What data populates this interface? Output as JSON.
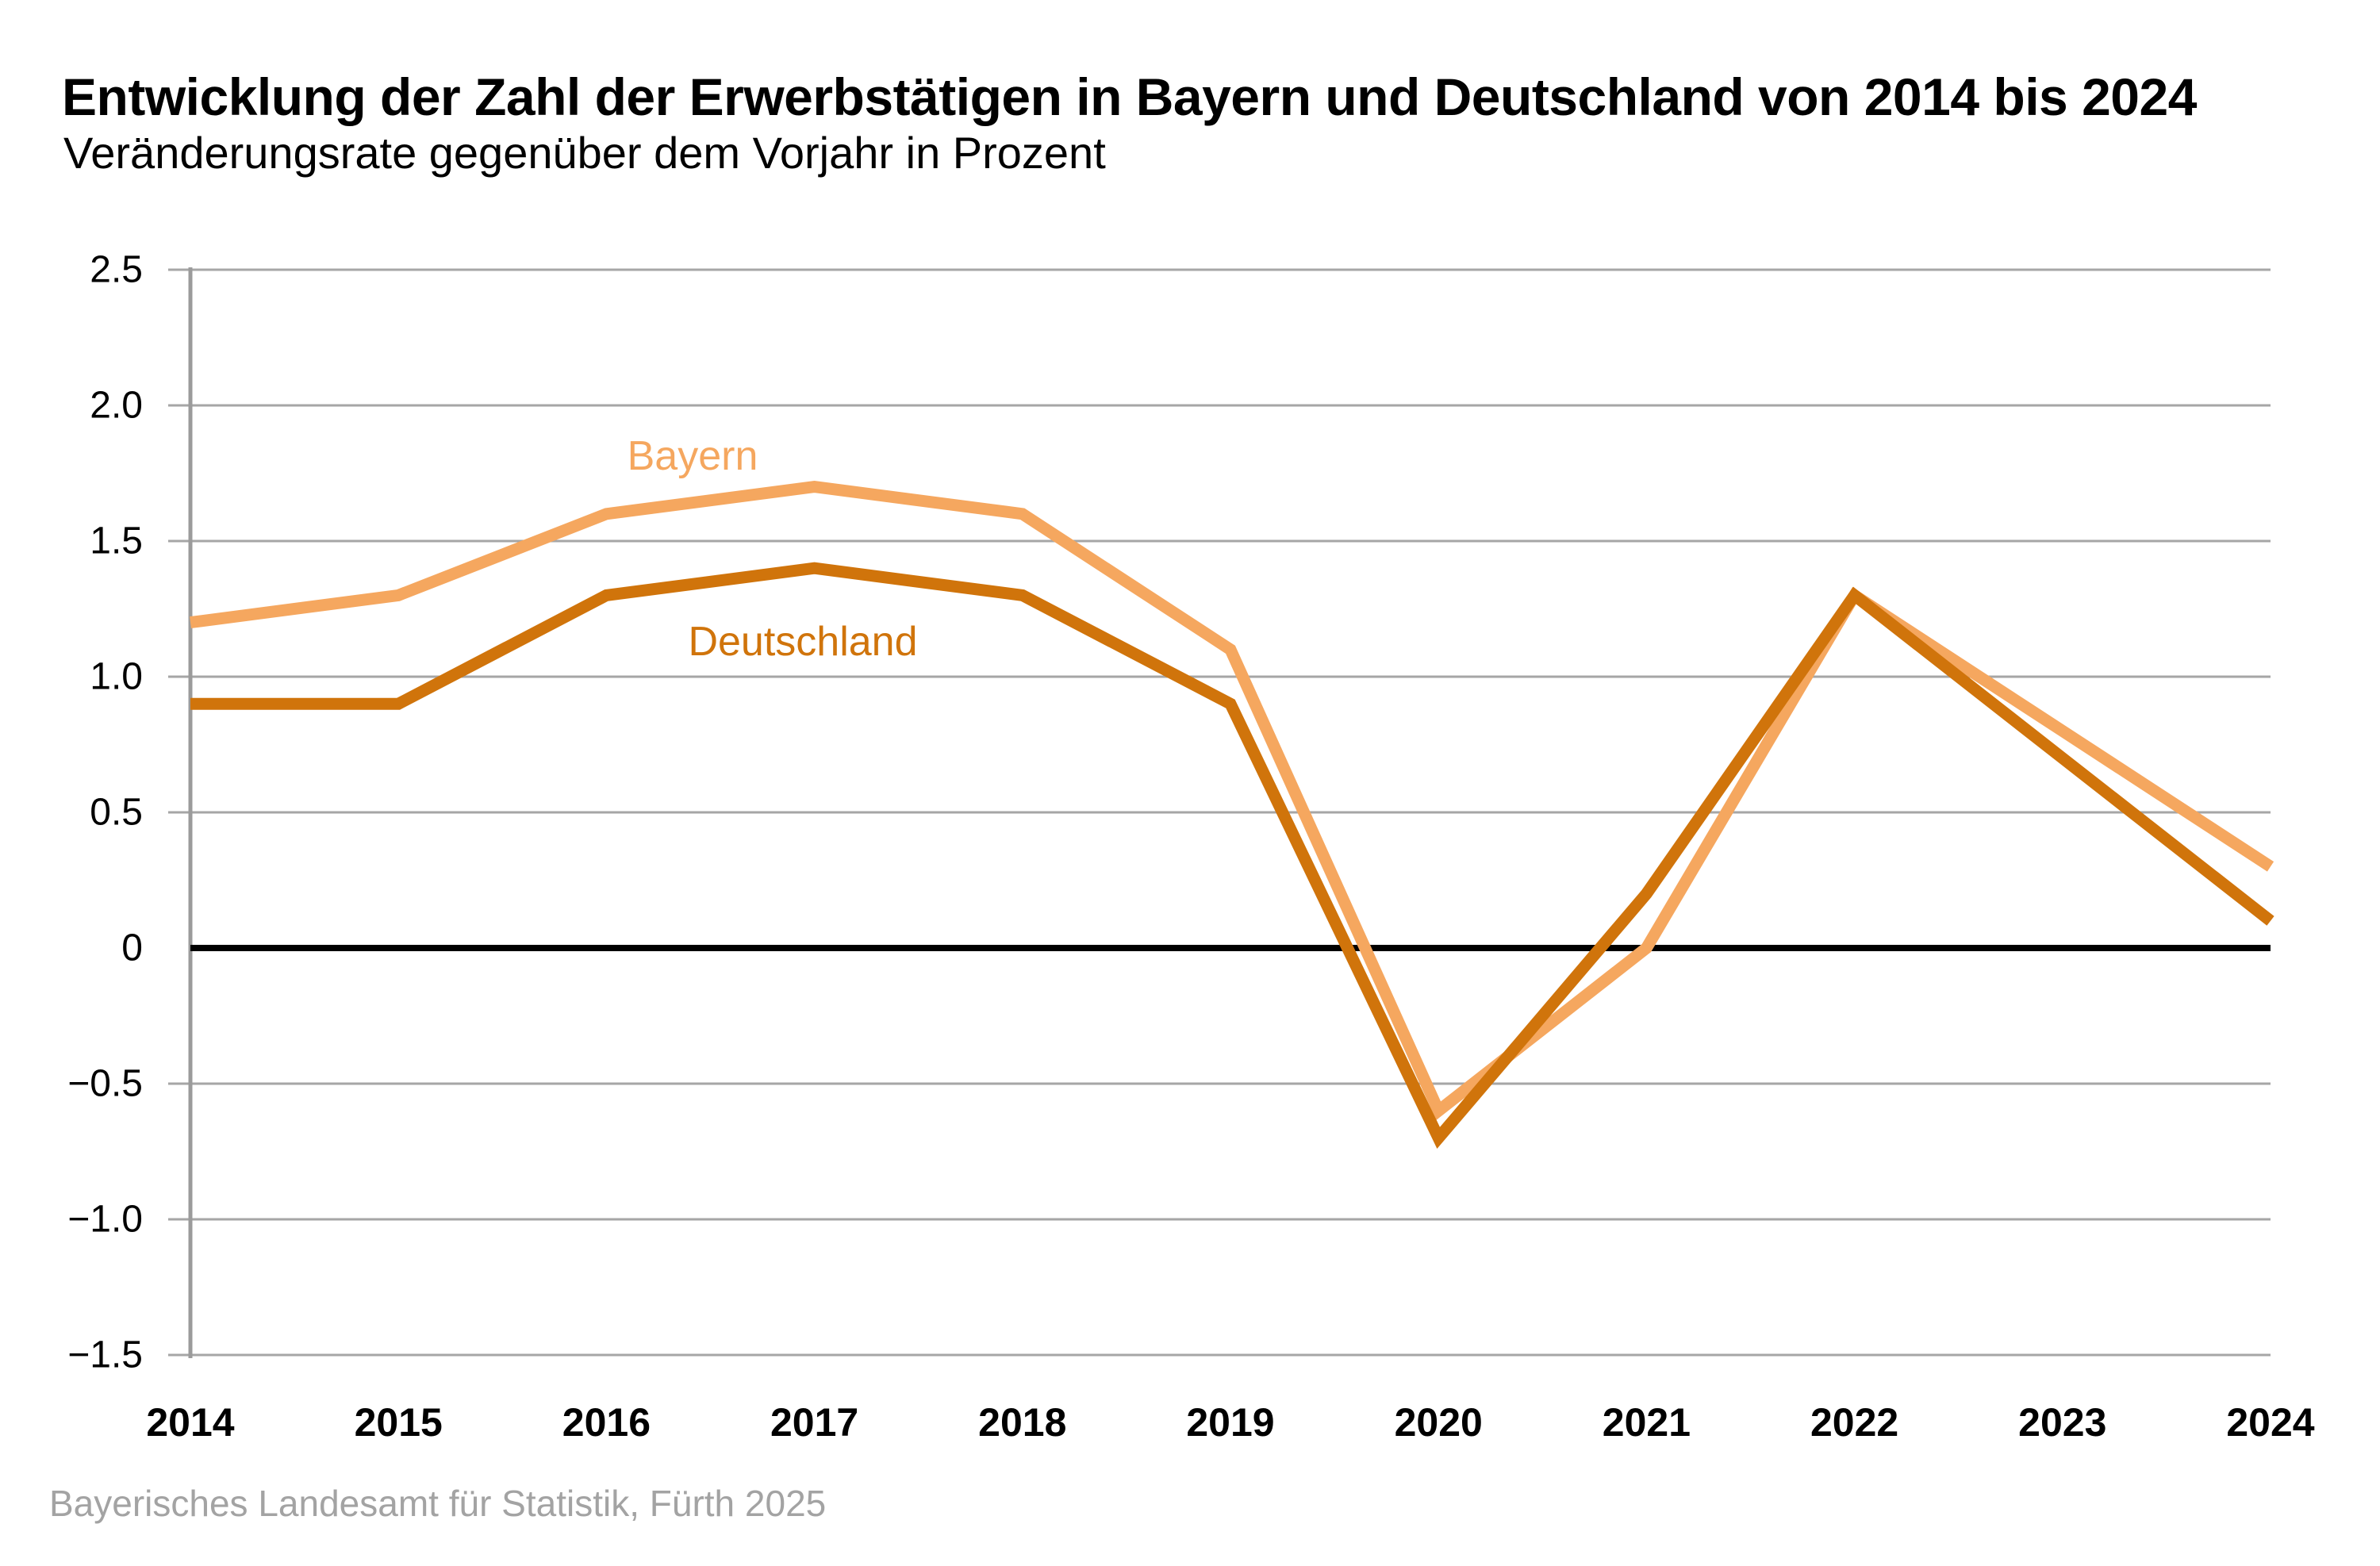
{
  "header": {
    "title": "Entwicklung der Zahl der Erwerbstätigen in Bayern und Deutschland von 2014 bis 2024",
    "subtitle": "Veränderungsrate gegenüber dem Vorjahr in Prozent"
  },
  "footer": {
    "source": "Bayerisches Landesamt für Statistik, Fürth 2025"
  },
  "colors": {
    "bayern": "#F5A75F",
    "deutschland": "#D0740B",
    "gridline": "#a6a6a6",
    "y_axis": "#9b9b9b",
    "zero_line": "#000000",
    "axis_text": "#000000",
    "footer_text": "#a3a3a3"
  },
  "chart_data": {
    "type": "line",
    "title": "Entwicklung der Zahl der Erwerbstätigen in Bayern und Deutschland von 2014 bis 2024",
    "subtitle": "Veränderungsrate gegenüber dem Vorjahr in Prozent",
    "categories": [
      "2014",
      "2015",
      "2016",
      "2017",
      "2018",
      "2019",
      "2020",
      "2021",
      "2022",
      "2023",
      "2024"
    ],
    "series": [
      {
        "name": "Bayern",
        "color": "#F5A75F",
        "values": [
          1.2,
          1.3,
          1.6,
          1.7,
          1.6,
          1.1,
          -0.6,
          0.0,
          1.3,
          0.8,
          0.3
        ]
      },
      {
        "name": "Deutschland",
        "color": "#D0740B",
        "values": [
          0.9,
          0.9,
          1.3,
          1.4,
          1.3,
          0.9,
          -0.7,
          0.2,
          1.3,
          0.7,
          0.1
        ]
      }
    ],
    "xlabel": "",
    "ylabel": "",
    "ylim": [
      -1.5,
      2.5
    ],
    "ytick_step": 0.5,
    "grid": "horizontal",
    "zero_line": true,
    "legend_position": "inline-line-labels"
  }
}
